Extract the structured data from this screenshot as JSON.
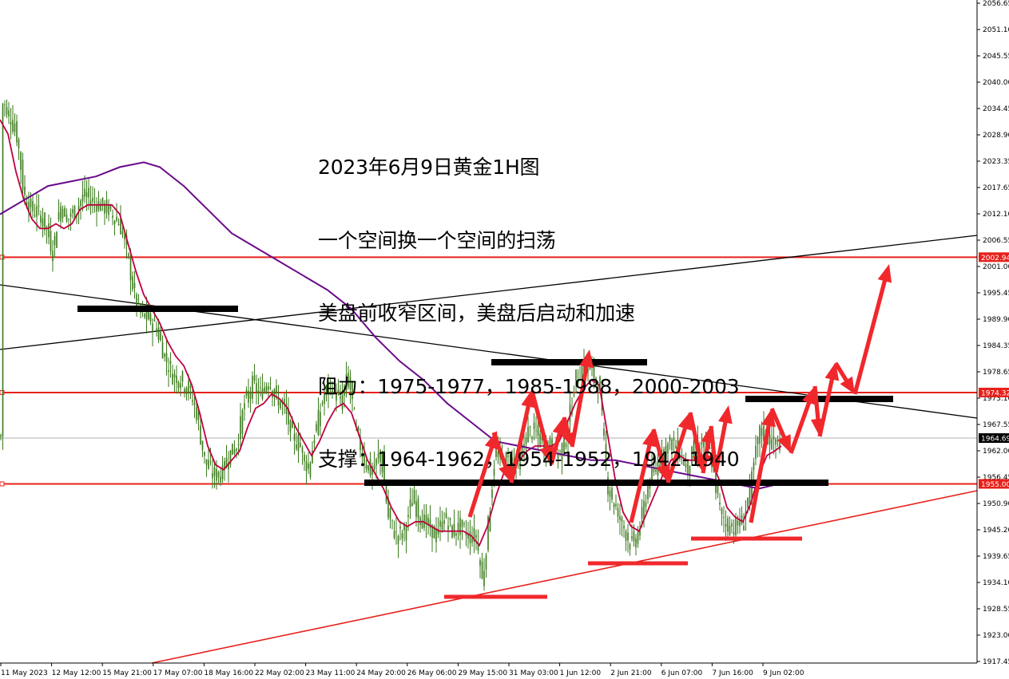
{
  "chart_data": {
    "type": "candlestick",
    "symbol": "XAUUSD,H1",
    "annotation": {
      "lines": [
        "2023年6月9日黄金1H图",
        "一个空间换一个空间的扫荡",
        "美盘前收窄区间，美盘后启动和加速",
        "阻力：1975-1977，1985-1988，2000-2003",
        "支撑：1964-1962，1954-1952，1942-1940"
      ]
    },
    "y_axis": {
      "range": [
        1917.45,
        2056.65
      ],
      "ticks": [
        "2056.65",
        "2051.10",
        "2045.55",
        "2040.00",
        "2034.45",
        "2028.90",
        "2023.35",
        "2017.65",
        "2012.10",
        "2006.55",
        "2001.00",
        "1995.45",
        "1989.90",
        "1984.35",
        "1978.65",
        "1973.10",
        "1967.55",
        "1962.00",
        "1956.45",
        "1950.90",
        "1945.20",
        "1939.65",
        "1934.10",
        "1928.55",
        "1923.00",
        "1917.45"
      ]
    },
    "x_axis": {
      "labels": [
        "11 May 2023",
        "12 May 12:00",
        "15 May 21:00",
        "17 May 07:00",
        "18 May 16:00",
        "22 May 02:00",
        "23 May 11:00",
        "24 May 20:00",
        "26 May 06:00",
        "29 May 15:00",
        "31 May 03:00",
        "1 Jun 12:00",
        "2 Jun 21:00",
        "6 Jun 07:00",
        "7 Jun 16:00",
        "9 Jun 02:00"
      ]
    },
    "price_tags": [
      {
        "value": "2002.94",
        "color": "#e8201a"
      },
      {
        "value": "1974.32",
        "color": "#e8201a"
      },
      {
        "value": "1964.69",
        "color": "#000000"
      },
      {
        "value": "1955.00",
        "color": "#e8201a"
      }
    ],
    "horizontal_levels": [
      2002.94,
      1974.32,
      1955.0
    ],
    "current_price": 1964.69,
    "colors": {
      "candle": "#3a7a1c",
      "fast_ma": "#c00040",
      "slow_ma": "#6a0a8a",
      "level": "#e8201a",
      "arrow": "#f0282c",
      "box_line": "#000000"
    }
  }
}
